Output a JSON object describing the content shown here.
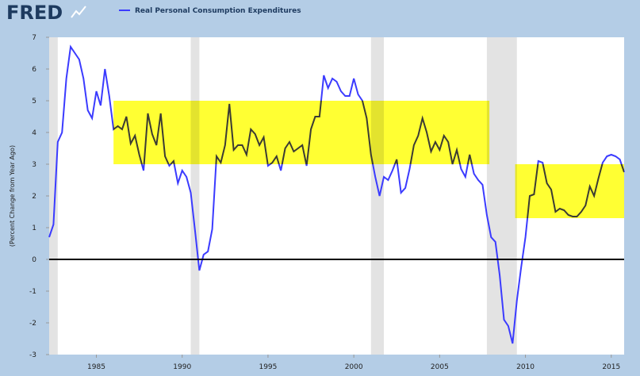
{
  "logo": "FRED",
  "chart_data": {
    "type": "line",
    "y_label": "(Percent Change from Year Ago)",
    "x": [
      1982.25,
      1982.5,
      1982.75,
      1983,
      1983.25,
      1983.5,
      1983.75,
      1984,
      1984.25,
      1984.5,
      1984.75,
      1985,
      1985.25,
      1985.5,
      1985.75,
      1986,
      1986.25,
      1986.5,
      1986.75,
      1987,
      1987.25,
      1987.5,
      1987.75,
      1988,
      1988.25,
      1988.5,
      1988.75,
      1989,
      1989.25,
      1989.5,
      1989.75,
      1990,
      1990.25,
      1990.5,
      1990.75,
      1991,
      1991.25,
      1991.5,
      1991.75,
      1992,
      1992.25,
      1992.5,
      1992.75,
      1993,
      1993.25,
      1993.5,
      1993.75,
      1994,
      1994.25,
      1994.5,
      1994.75,
      1995,
      1995.25,
      1995.5,
      1995.75,
      1996,
      1996.25,
      1996.5,
      1996.75,
      1997,
      1997.25,
      1997.5,
      1997.75,
      1998,
      1998.25,
      1998.5,
      1998.75,
      1999,
      1999.25,
      1999.5,
      1999.75,
      2000,
      2000.25,
      2000.5,
      2000.75,
      2001,
      2001.25,
      2001.5,
      2001.75,
      2002,
      2002.25,
      2002.5,
      2002.75,
      2003,
      2003.25,
      2003.5,
      2003.75,
      2004,
      2004.25,
      2004.5,
      2004.75,
      2005,
      2005.25,
      2005.5,
      2005.75,
      2006,
      2006.25,
      2006.5,
      2006.75,
      2007,
      2007.25,
      2007.5,
      2007.75,
      2008,
      2008.25,
      2008.5,
      2008.75,
      2009,
      2009.25,
      2009.5,
      2009.75,
      2010,
      2010.25,
      2010.5,
      2010.75,
      2011,
      2011.25,
      2011.5,
      2011.75,
      2012,
      2012.25,
      2012.5,
      2012.75,
      2013,
      2013.25,
      2013.5,
      2013.75,
      2014,
      2014.25,
      2014.5,
      2014.75,
      2015,
      2015.25,
      2015.5,
      2015.75
    ],
    "series": [
      {
        "name": "Real Personal Consumption Expenditures",
        "color": "#3b3bff",
        "values": [
          0.7,
          1.1,
          3.7,
          4.0,
          5.7,
          6.7,
          6.5,
          6.3,
          5.7,
          4.7,
          4.45,
          5.3,
          4.85,
          6.0,
          5.15,
          4.1,
          4.2,
          4.1,
          4.5,
          3.65,
          3.9,
          3.3,
          2.8,
          4.6,
          3.95,
          3.6,
          4.6,
          3.25,
          2.95,
          3.1,
          2.4,
          2.8,
          2.6,
          2.1,
          0.9,
          -0.35,
          0.15,
          0.25,
          0.95,
          3.25,
          3.05,
          3.6,
          4.9,
          3.45,
          3.6,
          3.6,
          3.3,
          4.1,
          3.95,
          3.6,
          3.85,
          2.95,
          3.05,
          3.25,
          2.8,
          3.5,
          3.7,
          3.4,
          3.5,
          3.6,
          2.95,
          4.1,
          4.5,
          4.5,
          5.8,
          5.4,
          5.7,
          5.6,
          5.3,
          5.15,
          5.15,
          5.7,
          5.2,
          5.0,
          4.45,
          3.3,
          2.6,
          2.0,
          2.6,
          2.5,
          2.8,
          3.15,
          2.1,
          2.25,
          2.85,
          3.6,
          3.9,
          4.45,
          4.0,
          3.4,
          3.7,
          3.45,
          3.9,
          3.7,
          3.0,
          3.45,
          2.85,
          2.6,
          3.3,
          2.7,
          2.5,
          2.35,
          1.4,
          0.7,
          0.55,
          -0.5,
          -1.9,
          -2.1,
          -2.65,
          -1.3,
          -0.25,
          0.7,
          2.0,
          2.05,
          3.1,
          3.05,
          2.4,
          2.2,
          1.5,
          1.6,
          1.55,
          1.4,
          1.35,
          1.35,
          1.5,
          1.7,
          2.3,
          2.0,
          2.55,
          3.05,
          3.25,
          3.3,
          3.25,
          3.15,
          2.75
        ]
      }
    ],
    "xlim": [
      1982.25,
      2015.75
    ],
    "xticks": [
      1985,
      1990,
      1995,
      2000,
      2005,
      2010,
      2015
    ],
    "ylim": [
      -3,
      7
    ],
    "yticks": [
      -3,
      -2,
      -1,
      0,
      1,
      2,
      3,
      4,
      5,
      6,
      7
    ],
    "reference_line": 0,
    "recessions": [
      [
        1982.25,
        1982.75
      ],
      [
        1990.5,
        1991.0
      ],
      [
        2001.0,
        2001.75
      ],
      [
        2007.75,
        2009.5
      ]
    ],
    "recession_color": "#e3e3e3",
    "highlights": [
      {
        "x": [
          1986.0,
          2007.9
        ],
        "y": [
          3,
          5
        ]
      },
      {
        "x": [
          2009.4,
          2015.75
        ],
        "y": [
          1.3,
          3
        ]
      }
    ],
    "highlight_color": "#ffff33"
  }
}
